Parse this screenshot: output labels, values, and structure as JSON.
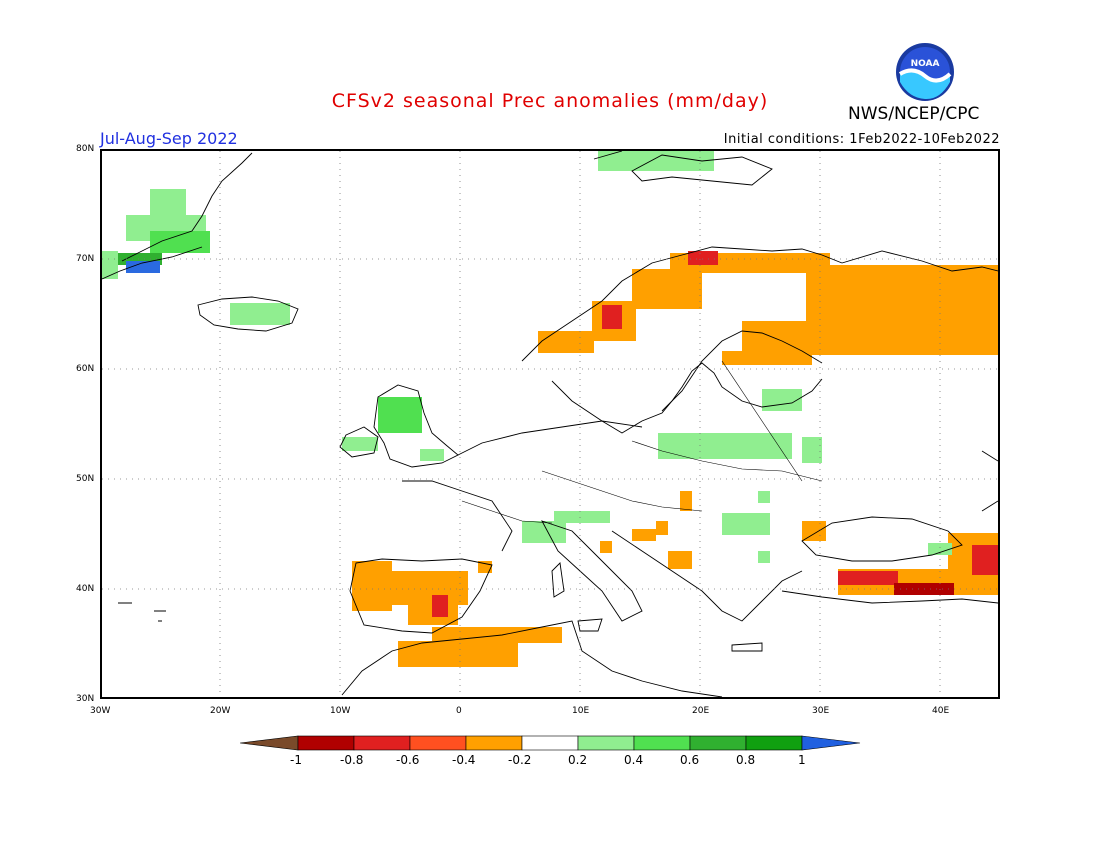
{
  "header": {
    "title": "CFSv2 seasonal Prec anomalies (mm/day)",
    "season": "Jul-Aug-Sep 2022",
    "initial_conditions": "Initial conditions: 1Feb2022-10Feb2022",
    "agency": "NWS/NCEP/CPC",
    "logo_text": "NOAA"
  },
  "map": {
    "lat_labels": [
      "80N",
      "70N",
      "60N",
      "50N",
      "40N",
      "30N"
    ],
    "lon_labels": [
      "30W",
      "20W",
      "10W",
      "0",
      "10E",
      "20E",
      "30E",
      "40E"
    ],
    "grid": true
  },
  "colorbar": {
    "labels": [
      "-1",
      "-0.8",
      "-0.6",
      "-0.4",
      "-0.2",
      "0.2",
      "0.4",
      "0.6",
      "0.8",
      "1"
    ],
    "colors": [
      "#7a4a2a",
      "#b00000",
      "#e02020",
      "#ff5020",
      "#ffa000",
      "#ffffff",
      "#90ee90",
      "#50e050",
      "#30b030",
      "#10a010",
      "#2060e0"
    ]
  }
}
